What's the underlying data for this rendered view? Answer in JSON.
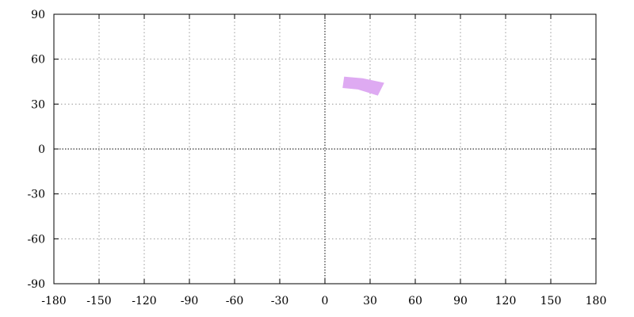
{
  "chart_data": {
    "type": "area",
    "title": "",
    "xlabel": "",
    "ylabel": "",
    "xlim": [
      -180,
      180
    ],
    "ylim": [
      -90,
      90
    ],
    "xticks": [
      -180,
      -150,
      -120,
      -90,
      -60,
      -30,
      0,
      30,
      60,
      90,
      120,
      150,
      180
    ],
    "yticks": [
      -90,
      -60,
      -30,
      0,
      30,
      60,
      90
    ],
    "grid": true,
    "zero_lines": true,
    "polygons": [
      {
        "color": "#deaaf2",
        "points": [
          [
            13,
            48
          ],
          [
            25,
            47
          ],
          [
            39,
            44
          ],
          [
            35,
            36
          ],
          [
            22,
            40
          ],
          [
            12,
            41
          ]
        ]
      }
    ]
  }
}
